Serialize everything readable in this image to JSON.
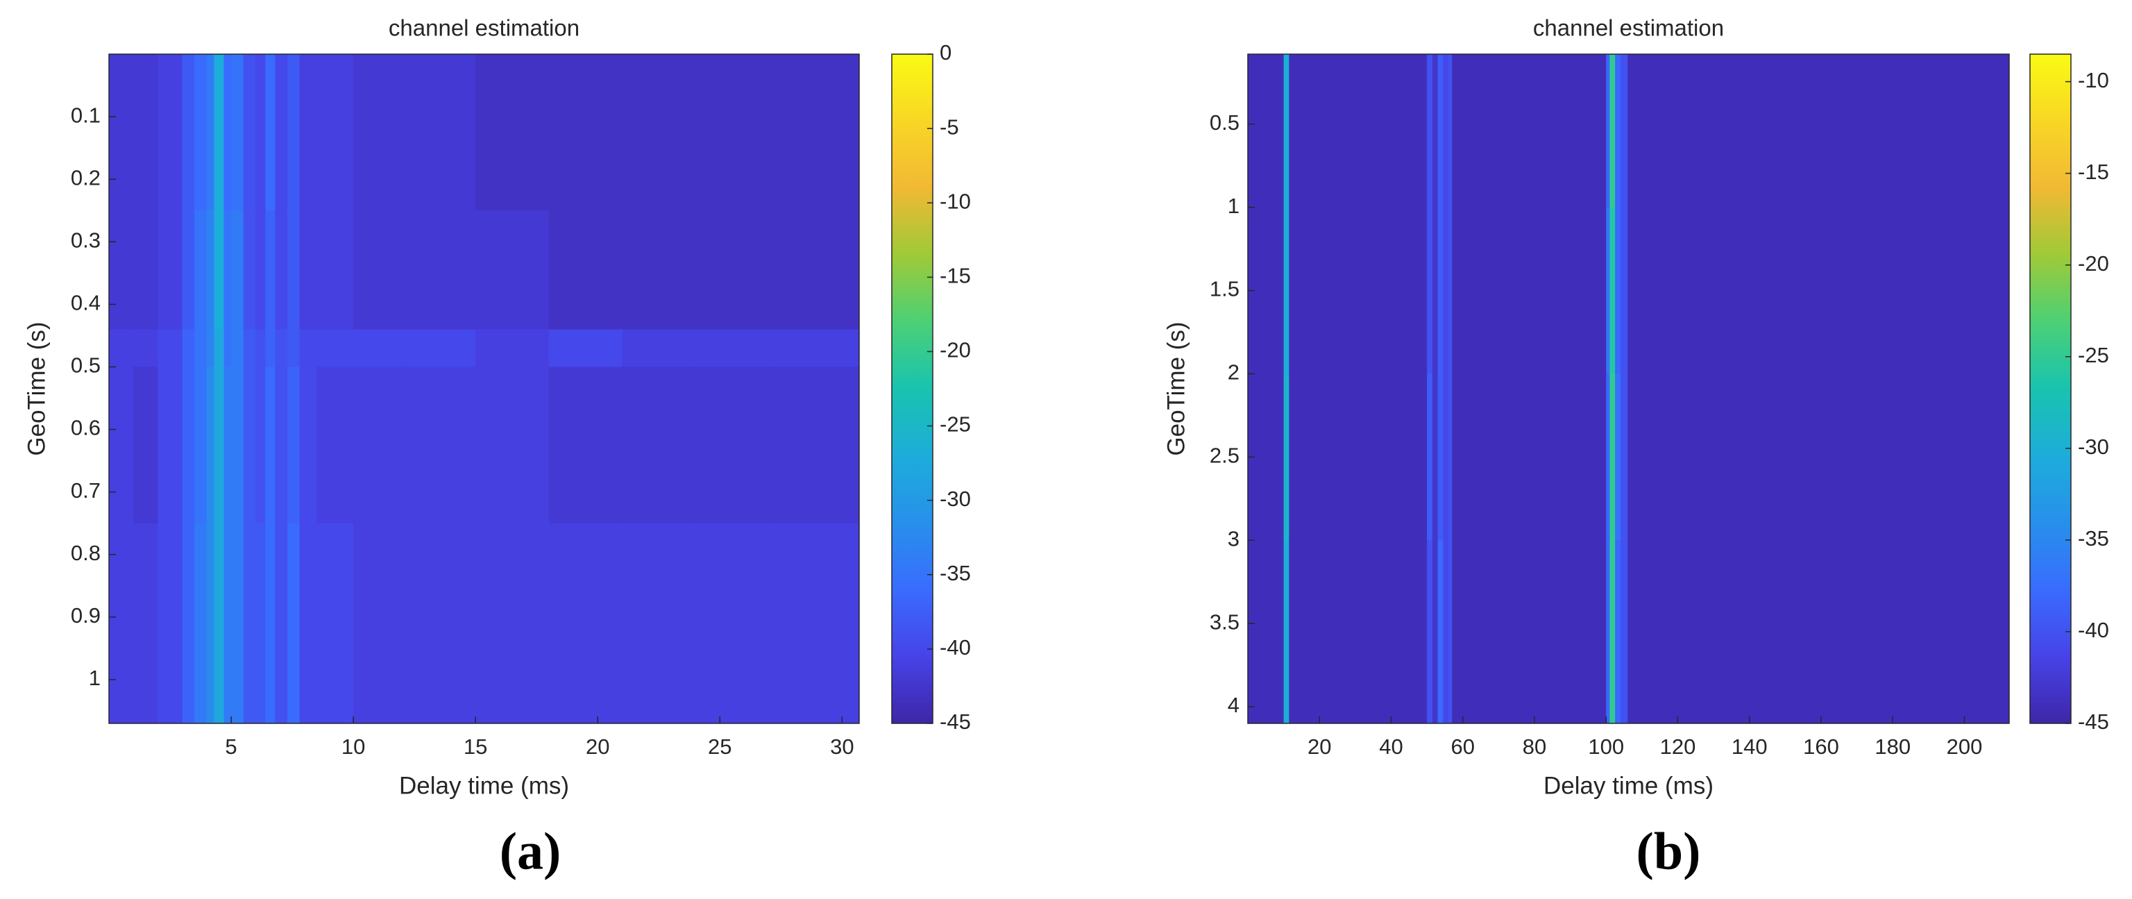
{
  "chart_data": [
    {
      "type": "heatmap",
      "title": "channel estimation",
      "xlabel": "Delay time (ms)",
      "ylabel": "GeoTime (s)",
      "panel_label": "(a)",
      "x_edges": [
        0,
        1,
        2,
        3,
        3.5,
        4,
        4.3,
        4.7,
        5,
        5.5,
        6,
        6.4,
        6.8,
        7.3,
        7.8,
        8.5,
        10,
        12,
        15,
        18,
        21,
        24,
        27,
        30.7
      ],
      "y_edges": [
        0,
        0.25,
        0.44,
        0.5,
        0.75,
        1.07
      ],
      "z": [
        [
          -42,
          -42,
          -41,
          -38,
          -36,
          -34,
          -27,
          -36,
          -35,
          -39,
          -40,
          -36,
          -40,
          -38,
          -41,
          -41,
          -42,
          -42,
          -43,
          -43,
          -43,
          -43,
          -43
        ],
        [
          -42,
          -42,
          -41,
          -38,
          -35,
          -33,
          -27,
          -35,
          -34,
          -39,
          -40,
          -37,
          -40,
          -38,
          -41,
          -41,
          -42,
          -42,
          -42,
          -43,
          -43,
          -43,
          -43
        ],
        [
          -41,
          -41,
          -40,
          -37,
          -35,
          -33,
          -28,
          -35,
          -34,
          -38,
          -39,
          -37,
          -39,
          -38,
          -40,
          -40,
          -40,
          -40,
          -41,
          -40,
          -41,
          -41,
          -41
        ],
        [
          -41,
          -42,
          -40,
          -37,
          -35,
          -32,
          -28,
          -34,
          -34,
          -38,
          -39,
          -36,
          -39,
          -37,
          -40,
          -41,
          -41,
          -41,
          -41,
          -42,
          -42,
          -42,
          -42
        ],
        [
          -41,
          -41,
          -40,
          -37,
          -34,
          -32,
          -28,
          -34,
          -34,
          -38,
          -38,
          -36,
          -39,
          -36,
          -40,
          -40,
          -41,
          -41,
          -41,
          -41,
          -41,
          -41,
          -41
        ]
      ],
      "xlim": [
        0,
        30.7
      ],
      "xticks": [
        5,
        10,
        15,
        20,
        25,
        30
      ],
      "ylim": [
        0,
        1.07
      ],
      "yticks": [
        0.1,
        0.2,
        0.3,
        0.4,
        0.5,
        0.6,
        0.7,
        0.8,
        0.9,
        1
      ],
      "y_reversed": true,
      "clim": [
        -45,
        0
      ],
      "cticks": [
        0,
        -5,
        -10,
        -15,
        -20,
        -25,
        -30,
        -35,
        -40,
        -45
      ],
      "colormap": "parula"
    },
    {
      "type": "heatmap",
      "title": "channel estimation",
      "xlabel": "Delay time (ms)",
      "ylabel": "GeoTime (s)",
      "panel_label": "(b)",
      "x_edges": [
        0,
        10,
        11.5,
        50,
        51.5,
        53,
        54.5,
        56,
        57,
        100,
        101,
        102.5,
        104,
        106,
        212.5
      ],
      "y_edges": [
        0.08,
        1,
        2,
        3,
        4.1
      ],
      "z": [
        [
          -44,
          -30,
          -44,
          -40,
          -43,
          -39,
          -41,
          -40,
          -44,
          -38,
          -25,
          -38,
          -40,
          -44
        ],
        [
          -44,
          -30,
          -44,
          -40,
          -43,
          -39,
          -41,
          -40,
          -44,
          -37,
          -26,
          -38,
          -40,
          -44
        ],
        [
          -44,
          -29,
          -44,
          -39,
          -43,
          -39,
          -41,
          -40,
          -44,
          -38,
          -25,
          -37,
          -40,
          -44
        ],
        [
          -44,
          -30,
          -44,
          -40,
          -43,
          -38,
          -41,
          -40,
          -44,
          -38,
          -25,
          -38,
          -40,
          -44
        ]
      ],
      "xlim": [
        0,
        212.5
      ],
      "xticks": [
        20,
        40,
        60,
        80,
        100,
        120,
        140,
        160,
        180,
        200
      ],
      "ylim": [
        0.08,
        4.1
      ],
      "yticks": [
        0.5,
        1,
        1.5,
        2,
        2.5,
        3,
        3.5,
        4
      ],
      "y_reversed": true,
      "clim": [
        -45,
        -8.5
      ],
      "cticks": [
        -10,
        -15,
        -20,
        -25,
        -30,
        -35,
        -40,
        -45
      ],
      "colormap": "parula"
    }
  ]
}
